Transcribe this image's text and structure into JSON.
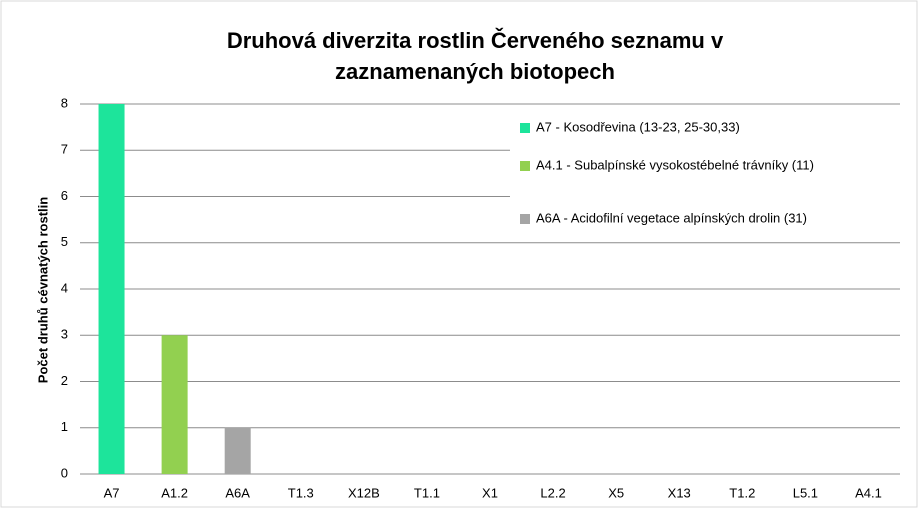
{
  "chart_data": {
    "type": "bar",
    "title": [
      "Druhová diverzita rostlin Červeného seznamu v",
      "zaznamenaných biotopech"
    ],
    "y_label": "Počet druhů cévnatých rostlin",
    "categories": [
      "A7",
      "A1.2",
      "A6A",
      "T1.3",
      "X12B",
      "T1.1",
      "X1",
      "L2.2",
      "X5",
      "X13",
      "T1.2",
      "L5.1",
      "A4.1"
    ],
    "values": [
      8,
      3,
      1,
      0,
      0,
      0,
      0,
      0,
      0,
      0,
      0,
      0,
      0
    ],
    "colors": [
      "#1de49b",
      "#92d050",
      "#a5a5a5"
    ],
    "legend": [
      {
        "name": "A7 - Kosodřevina (13-23, 25-30,33)",
        "color": "#1de49b"
      },
      {
        "name": "A4.1 - Subalpínské vysokostébelné trávníky (11)",
        "color": "#92d050"
      },
      {
        "name": "A6A - Acidofilní vegetace alpínských drolin (31)",
        "color": "#a5a5a5"
      }
    ],
    "ylim": [
      0,
      8
    ],
    "yticks": [
      0,
      1,
      2,
      3,
      4,
      5,
      6,
      7,
      8
    ],
    "grid": true
  }
}
